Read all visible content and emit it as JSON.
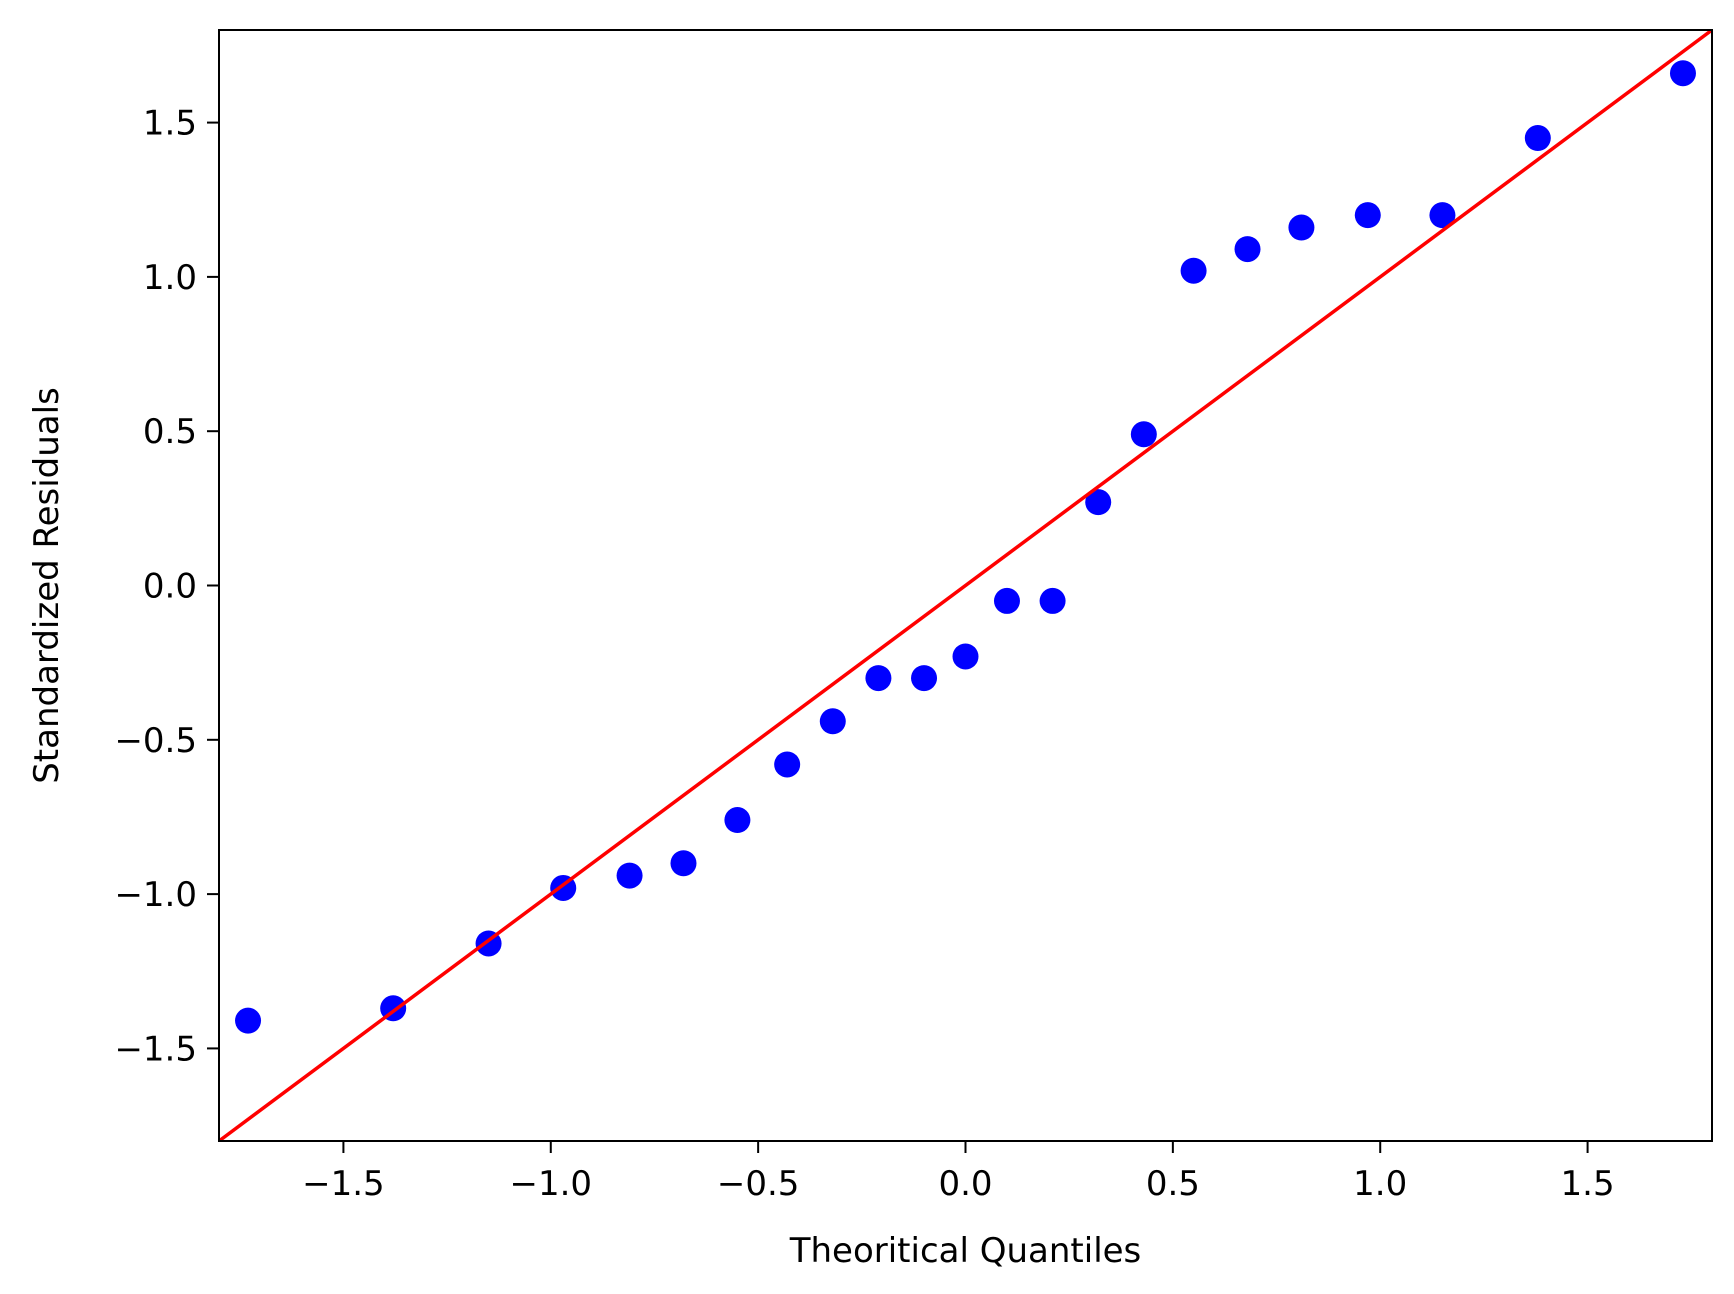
{
  "chart_data": {
    "type": "scatter",
    "title": "",
    "xlabel": "Theoritical Quantiles",
    "ylabel": "Standardized Residuals",
    "xlim": [
      -1.8,
      1.8
    ],
    "ylim": [
      -1.8,
      1.8
    ],
    "grid": false,
    "x_ticks": [
      -1.5,
      -1.0,
      -0.5,
      0.0,
      0.5,
      1.0,
      1.5
    ],
    "x_tick_labels": [
      "−1.5",
      "−1.0",
      "−0.5",
      "0.0",
      "0.5",
      "1.0",
      "1.5"
    ],
    "y_ticks": [
      -1.5,
      -1.0,
      -0.5,
      0.0,
      0.5,
      1.0,
      1.5
    ],
    "y_tick_labels": [
      "−1.5",
      "−1.0",
      "−0.5",
      "0.0",
      "0.5",
      "1.0",
      "1.5"
    ],
    "series": [
      {
        "type": "scatter",
        "color": "#0000ff",
        "x": [
          -1.73,
          -1.38,
          -1.15,
          -0.97,
          -0.81,
          -0.68,
          -0.55,
          -0.43,
          -0.32,
          -0.21,
          -0.1,
          0.0,
          0.1,
          0.21,
          0.32,
          0.43,
          0.55,
          0.68,
          0.81,
          0.97,
          1.15,
          1.38,
          1.73
        ],
        "y": [
          -1.41,
          -1.37,
          -1.16,
          -0.98,
          -0.94,
          -0.9,
          -0.76,
          -0.58,
          -0.44,
          -0.3,
          -0.3,
          -0.23,
          -0.05,
          -0.05,
          0.27,
          0.49,
          1.02,
          1.09,
          1.16,
          1.2,
          1.2,
          1.45,
          1.66
        ]
      },
      {
        "type": "line",
        "color": "#ff0000",
        "x": [
          -1.8,
          1.8
        ],
        "y": [
          -1.8,
          1.8
        ]
      }
    ]
  }
}
